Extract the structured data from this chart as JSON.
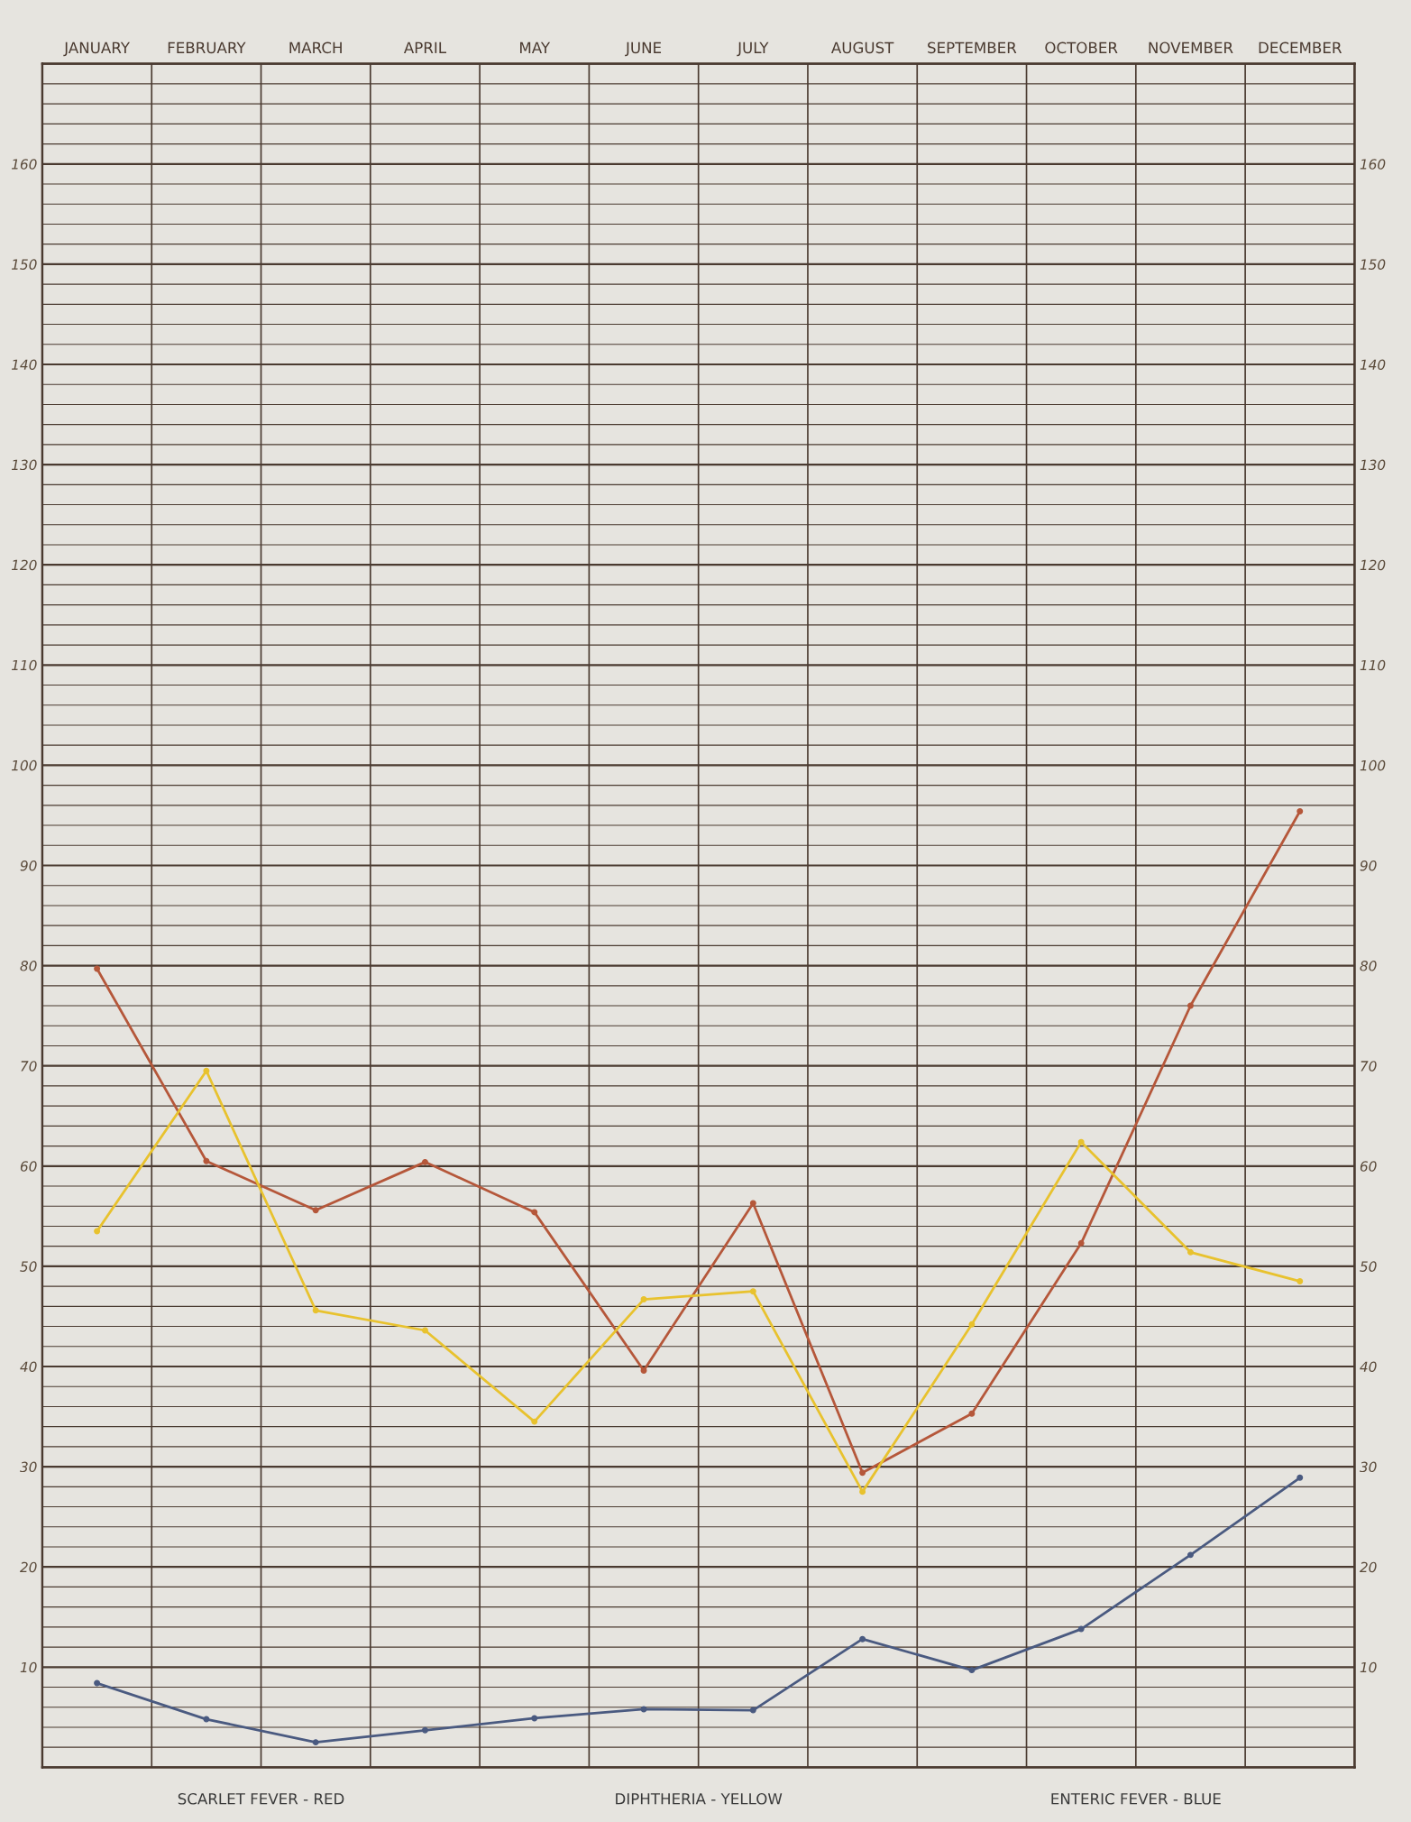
{
  "chart_data": {
    "type": "line",
    "categories": [
      "JANUARY",
      "FEBRUARY",
      "MARCH",
      "APRIL",
      "MAY",
      "JUNE",
      "JULY",
      "AUGUST",
      "SEPTEMBER",
      "OCTOBER",
      "NOVEMBER",
      "DECEMBER"
    ],
    "series": [
      {
        "color": "#b5573a",
        "values": [
          79.7,
          60.5,
          55.6,
          60.4,
          55.4,
          39.6,
          56.3,
          29.4,
          35.3,
          52.3,
          76.0,
          95.4
        ]
      },
      {
        "color": "#e8c22e",
        "values": [
          53.5,
          69.5,
          45.6,
          43.6,
          34.5,
          46.7,
          47.5,
          27.5,
          44.2,
          62.4,
          51.4,
          48.5
        ]
      },
      {
        "color": "#4a5a80",
        "values": [
          8.4,
          4.8,
          2.5,
          3.7,
          4.9,
          5.8,
          5.7,
          12.8,
          9.7,
          13.8,
          21.2,
          28.9
        ]
      }
    ],
    "ylim": [
      0,
      170
    ],
    "yticks": [
      {
        "value": 2,
        "label": null
      },
      {
        "value": 4,
        "label": null
      },
      {
        "value": 6,
        "label": null
      },
      {
        "value": 8,
        "label": null
      },
      10,
      {
        "value": 12,
        "label": null
      },
      {
        "value": 14,
        "label": null
      },
      {
        "value": 16,
        "label": null
      },
      {
        "value": 18,
        "label": null
      },
      20,
      {
        "value": 22,
        "label": null
      },
      {
        "value": 24,
        "label": null
      },
      {
        "value": 26,
        "label": null
      },
      {
        "value": 28,
        "label": null
      },
      30,
      {
        "value": 32,
        "label": null
      },
      {
        "value": 34,
        "label": null
      },
      {
        "value": 36,
        "label": null
      },
      {
        "value": 38,
        "label": null
      },
      40,
      {
        "value": 42,
        "label": null
      },
      {
        "value": 44,
        "label": null
      },
      {
        "value": 46,
        "label": null
      },
      {
        "value": 48,
        "label": null
      },
      50,
      {
        "value": 52,
        "label": null
      },
      {
        "value": 54,
        "label": null
      },
      {
        "value": 56,
        "label": null
      },
      {
        "value": 58,
        "label": null
      },
      60,
      {
        "value": 62,
        "label": null
      },
      {
        "value": 64,
        "label": null
      },
      {
        "value": 66,
        "label": null
      },
      {
        "value": 68,
        "label": null
      },
      70,
      {
        "value": 72,
        "label": null
      },
      {
        "value": 74,
        "label": null
      },
      {
        "value": 76,
        "label": null
      },
      {
        "value": 78,
        "label": null
      },
      80,
      {
        "value": 82,
        "label": null
      },
      {
        "value": 84,
        "label": null
      },
      {
        "value": 86,
        "label": null
      },
      {
        "value": 88,
        "label": null
      },
      90,
      {
        "value": 92,
        "label": null
      },
      {
        "value": 94,
        "label": null
      },
      {
        "value": 96,
        "label": null
      },
      {
        "value": 98,
        "label": null
      },
      100,
      {
        "value": 102,
        "label": null
      },
      {
        "value": 104,
        "label": null
      },
      {
        "value": 106,
        "label": null
      },
      {
        "value": 108,
        "label": null
      },
      110,
      {
        "value": 112,
        "label": null
      },
      {
        "value": 114,
        "label": null
      },
      {
        "value": 116,
        "label": null
      },
      {
        "value": 118,
        "label": null
      },
      120,
      {
        "value": 122,
        "label": null
      },
      {
        "value": 124,
        "label": null
      },
      {
        "value": 126,
        "label": null
      },
      {
        "value": 128,
        "label": null
      },
      130,
      {
        "value": 132,
        "label": null
      },
      {
        "value": 134,
        "label": null
      },
      {
        "value": 136,
        "label": null
      },
      {
        "value": 138,
        "label": null
      },
      140,
      {
        "value": 142,
        "label": null
      },
      {
        "value": 144,
        "label": null
      },
      {
        "value": 146,
        "label": null
      },
      {
        "value": 148,
        "label": null
      },
      150,
      {
        "value": 152,
        "label": null
      },
      {
        "value": 154,
        "label": null
      },
      {
        "value": 156,
        "label": null
      },
      {
        "value": 158,
        "label": null
      },
      160,
      {
        "value": 162,
        "label": null
      },
      {
        "value": 164,
        "label": null
      },
      {
        "value": 166,
        "label": null
      },
      {
        "value": 168,
        "label": null
      }
    ],
    "y2lim": [
      0,
      170
    ],
    "y2ticks": [
      10,
      20,
      30,
      40,
      50,
      60,
      70,
      80,
      90,
      100,
      110,
      120,
      130,
      140,
      150,
      160
    ],
    "grid": true,
    "marker": "circle",
    "line_style": "solid",
    "annotations": [
      "SCARLET FEVER - RED",
      "DIPHTHERIA - YELLOW",
      "ENTERIC FEVER - BLUE"
    ]
  }
}
